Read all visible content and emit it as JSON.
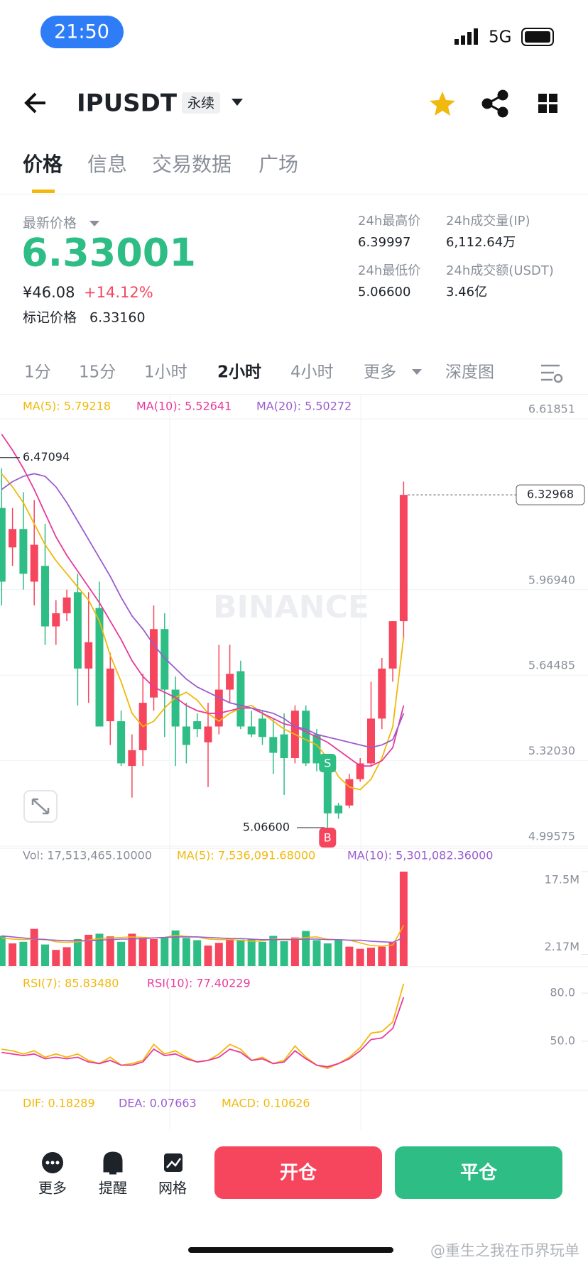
{
  "status_bar": {
    "time": "21:50",
    "network": "5G"
  },
  "header": {
    "symbol": "IPUSDT",
    "tag": "永续"
  },
  "tabs": [
    "价格",
    "信息",
    "交易数据",
    "广场"
  ],
  "ticker": {
    "last_label": "最新价格",
    "last_price": "6.33001",
    "cny": "¥46.08",
    "change": "+14.12%",
    "mark_label": "标记价格",
    "mark_price": "6.33160",
    "stats": [
      {
        "label": "24h最高价",
        "value": "6.39997"
      },
      {
        "label": "24h成交量(IP)",
        "value": "6,112.64万"
      },
      {
        "label": "24h最低价",
        "value": "5.06600"
      },
      {
        "label": "24h成交额(USDT)",
        "value": "3.46亿"
      }
    ]
  },
  "intervals": [
    "1分",
    "15分",
    "1小时",
    "2小时",
    "4小时",
    "更多",
    "深度图"
  ],
  "chart_data": {
    "type": "candlestick",
    "watermark": "BINANCE",
    "up_color": "#f6465d",
    "down_color": "#2ebd85",
    "ylim": [
      4.99575,
      6.61851
    ],
    "yticks": [
      6.61851,
      {
        "value": 5.9694,
        "label": "5.96940"
      },
      5.64485,
      {
        "value": 5.3203,
        "label": "5.32030"
      },
      4.99575
    ],
    "last_price": 6.32968,
    "high_mark": 6.47094,
    "low_mark": {
      "value": 5.066,
      "label": "5.06600"
    },
    "signals": [
      "S",
      "B"
    ],
    "candles": {
      "open": [
        6.28,
        6.13,
        6.2,
        6.0,
        6.06,
        5.83,
        5.88,
        5.96,
        5.67,
        5.9,
        5.47,
        5.47,
        5.3,
        5.36,
        5.56,
        5.82,
        5.59,
        5.45,
        5.47,
        5.39,
        5.45,
        5.59,
        5.66,
        5.45,
        5.48,
        5.41,
        5.42,
        5.33,
        5.51,
        5.42,
        5.3,
        5.15,
        5.15,
        5.25,
        5.31,
        5.48,
        5.67,
        5.85
      ],
      "high": [
        6.43,
        6.28,
        6.34,
        6.31,
        6.22,
        5.93,
        5.97,
        6.03,
        5.96,
        6.0,
        5.73,
        5.51,
        5.42,
        5.65,
        5.91,
        5.88,
        5.64,
        5.54,
        5.5,
        5.54,
        5.76,
        5.76,
        5.7,
        5.51,
        5.51,
        5.48,
        5.5,
        5.53,
        5.53,
        5.44,
        5.33,
        5.16,
        5.27,
        5.33,
        5.62,
        5.71,
        5.85,
        6.38
      ],
      "low": [
        5.91,
        6.06,
        5.97,
        5.91,
        5.76,
        5.76,
        5.85,
        5.53,
        5.54,
        5.45,
        5.38,
        5.3,
        5.18,
        5.3,
        5.51,
        5.41,
        5.3,
        5.31,
        5.41,
        5.22,
        5.42,
        5.54,
        5.44,
        5.41,
        5.38,
        5.27,
        5.19,
        5.31,
        5.3,
        5.28,
        5.066,
        5.1,
        5.14,
        5.24,
        5.3,
        5.44,
        5.62,
        5.78
      ],
      "close": [
        6.0,
        6.2,
        6.03,
        6.14,
        5.83,
        5.88,
        5.94,
        5.67,
        5.77,
        5.45,
        5.67,
        5.31,
        5.36,
        5.54,
        5.82,
        5.59,
        5.45,
        5.38,
        5.44,
        5.45,
        5.59,
        5.65,
        5.45,
        5.42,
        5.41,
        5.35,
        5.33,
        5.51,
        5.31,
        5.31,
        5.12,
        5.12,
        5.25,
        5.31,
        5.48,
        5.67,
        5.85,
        6.32968
      ]
    },
    "ma": [
      {
        "name": "MA(5): 5.79218",
        "color": "#f0b90b",
        "values": [
          6.41,
          6.36,
          6.3,
          6.22,
          6.14,
          6.08,
          6.03,
          5.98,
          5.93,
          5.85,
          5.72,
          5.62,
          5.5,
          5.45,
          5.47,
          5.52,
          5.56,
          5.58,
          5.55,
          5.5,
          5.47,
          5.5,
          5.52,
          5.53,
          5.5,
          5.47,
          5.44,
          5.42,
          5.4,
          5.38,
          5.33,
          5.26,
          5.22,
          5.21,
          5.25,
          5.33,
          5.45,
          5.79
        ]
      },
      {
        "name": "MA(10): 5.52641",
        "color": "#e8399b",
        "values": [
          6.56,
          6.5,
          6.43,
          6.35,
          6.26,
          6.17,
          6.1,
          6.04,
          5.98,
          5.92,
          5.85,
          5.78,
          5.7,
          5.64,
          5.6,
          5.58,
          5.56,
          5.53,
          5.51,
          5.5,
          5.5,
          5.51,
          5.52,
          5.52,
          5.5,
          5.48,
          5.46,
          5.45,
          5.43,
          5.41,
          5.39,
          5.36,
          5.33,
          5.3,
          5.3,
          5.32,
          5.37,
          5.53
        ]
      },
      {
        "name": "MA(20): 5.50272",
        "color": "#9a5cd0",
        "values": [
          6.35,
          6.38,
          6.4,
          6.41,
          6.4,
          6.36,
          6.3,
          6.23,
          6.16,
          6.09,
          6.02,
          5.94,
          5.87,
          5.82,
          5.76,
          5.71,
          5.67,
          5.63,
          5.6,
          5.58,
          5.56,
          5.54,
          5.53,
          5.52,
          5.51,
          5.5,
          5.48,
          5.45,
          5.44,
          5.42,
          5.41,
          5.4,
          5.39,
          5.38,
          5.37,
          5.38,
          5.4,
          5.5
        ]
      }
    ],
    "volume": {
      "label": "Vol: 17,513,465.10000",
      "ylim": [
        0,
        17.5
      ],
      "yticks": [
        {
          "value": 17.5,
          "label": "17.5M"
        },
        {
          "value": 2.17,
          "label": "2.17M"
        }
      ],
      "values": [
        5.6,
        4.2,
        4.5,
        6.9,
        4.0,
        3.0,
        3.5,
        5.0,
        5.8,
        6.0,
        5.5,
        4.5,
        6.0,
        5.4,
        5.0,
        5.2,
        6.6,
        5.2,
        4.8,
        3.8,
        4.3,
        5.1,
        4.9,
        5.0,
        4.5,
        5.6,
        4.6,
        5.3,
        6.5,
        4.8,
        4.2,
        4.8,
        3.6,
        3.2,
        3.4,
        3.6,
        4.5,
        17.51
      ],
      "ma": [
        {
          "name": "MA(5): 7,536,091.68000",
          "color": "#f0b90b",
          "values": [
            5.2,
            5.0,
            4.9,
            5.0,
            5.0,
            4.5,
            4.4,
            4.5,
            4.8,
            5.1,
            5.2,
            5.3,
            5.4,
            5.3,
            5.2,
            5.3,
            5.7,
            5.5,
            5.4,
            5.0,
            4.9,
            4.9,
            4.8,
            4.6,
            4.7,
            5.0,
            5.0,
            5.0,
            5.3,
            5.4,
            5.0,
            4.9,
            4.8,
            4.3,
            3.8,
            3.7,
            3.9,
            7.54
          ]
        },
        {
          "name": "MA(10): 5,301,082.36000",
          "color": "#9a5cd0",
          "values": [
            5.6,
            5.4,
            5.2,
            5.0,
            4.9,
            4.8,
            4.7,
            4.7,
            4.7,
            4.8,
            4.9,
            5.0,
            5.0,
            5.1,
            5.2,
            5.3,
            5.4,
            5.4,
            5.4,
            5.3,
            5.2,
            5.1,
            5.1,
            5.0,
            4.9,
            4.9,
            4.9,
            4.9,
            5.0,
            5.0,
            4.9,
            4.9,
            4.8,
            4.8,
            4.6,
            4.5,
            4.4,
            5.3
          ]
        }
      ]
    },
    "rsi": {
      "ylim": [
        22,
        92
      ],
      "yticks": [
        {
          "value": 80,
          "label": "80.0"
        },
        {
          "value": 50,
          "label": "50.0"
        }
      ],
      "series": [
        {
          "name": "RSI(7): 85.83480",
          "color": "#f0b90b",
          "values": [
            45,
            44,
            42,
            44,
            40,
            42,
            40,
            42,
            38,
            36,
            40,
            35,
            36,
            38,
            48,
            42,
            44,
            40,
            37,
            38,
            42,
            48,
            45,
            38,
            40,
            36,
            38,
            47,
            40,
            35,
            33,
            36,
            40,
            46,
            55,
            56,
            62,
            85.83
          ]
        },
        {
          "name": "RSI(10): 77.40229",
          "color": "#e8399b",
          "values": [
            43,
            42,
            41,
            42,
            39,
            40,
            39,
            40,
            37,
            36,
            38,
            35,
            35,
            37,
            45,
            41,
            42,
            39,
            37,
            38,
            40,
            45,
            43,
            38,
            39,
            36,
            37,
            44,
            39,
            35,
            34,
            36,
            39,
            44,
            51,
            52,
            58,
            77.4
          ]
        }
      ]
    },
    "macd": {
      "series": [
        {
          "name": "DIF: 0.18289",
          "color": "#f0b90b"
        },
        {
          "name": "DEA: 0.07663",
          "color": "#9a5cd0"
        },
        {
          "name": "MACD: 0.10626",
          "color": "#f0b90b"
        }
      ]
    }
  },
  "bottom_bar": {
    "items": [
      "更多",
      "提醒",
      "网格"
    ],
    "open": "开仓",
    "close": "平仓"
  },
  "watermark": "@重生之我在币界玩单"
}
